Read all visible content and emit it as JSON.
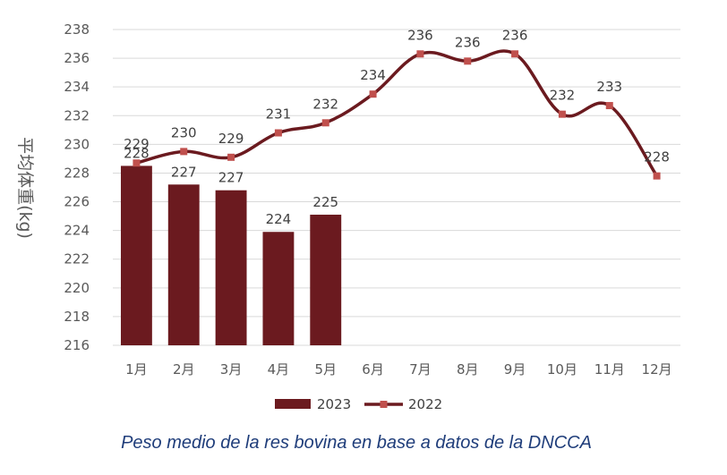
{
  "chart_data": {
    "type": "bar+line",
    "categories": [
      "1月",
      "2月",
      "3月",
      "4月",
      "5月",
      "6月",
      "7月",
      "8月",
      "9月",
      "10月",
      "11月",
      "12月"
    ],
    "series": [
      {
        "name": "2023",
        "kind": "bar",
        "color": "#6b1a1f",
        "values": [
          228.5,
          227.2,
          226.8,
          223.9,
          225.1,
          null,
          null,
          null,
          null,
          null,
          null,
          null
        ],
        "labels": [
          "228",
          "227",
          "227",
          "224",
          "225",
          "",
          "",
          "",
          "",
          "",
          "",
          ""
        ]
      },
      {
        "name": "2022",
        "kind": "line",
        "color": "#6b1a1f",
        "marker_color": "#c0504d",
        "values": [
          228.7,
          229.5,
          229.1,
          230.8,
          231.5,
          233.5,
          236.3,
          235.8,
          236.3,
          232.1,
          232.7,
          227.8
        ],
        "labels": [
          "229",
          "230",
          "229",
          "231",
          "232",
          "234",
          "236",
          "236",
          "236",
          "232",
          "233",
          "228"
        ]
      }
    ],
    "ylabel": "平均体重(kg)",
    "ylim": [
      216,
      238
    ],
    "yticks": [
      216,
      218,
      220,
      222,
      224,
      226,
      228,
      230,
      232,
      234,
      236,
      238
    ],
    "grid": true,
    "legend_position": "bottom"
  },
  "caption": "Peso medio de la res bovina en base a datos de la DNCCA"
}
